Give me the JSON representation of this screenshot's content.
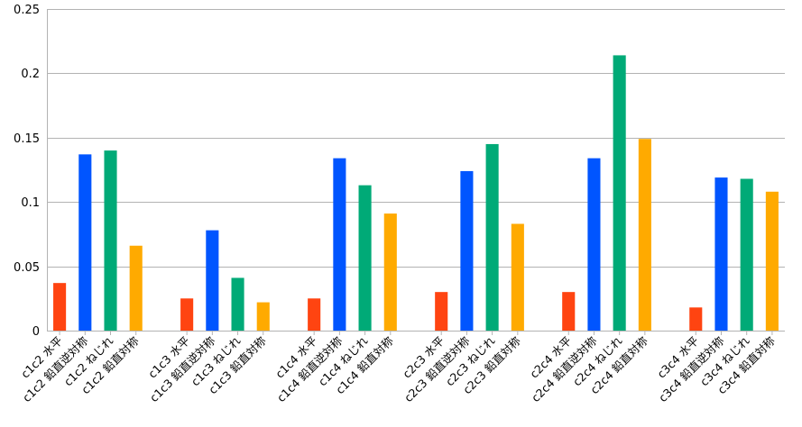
{
  "chart_data": {
    "type": "bar",
    "title": "",
    "xlabel": "",
    "ylabel": "",
    "ylim": [
      0,
      0.25
    ],
    "yticks": [
      "0",
      "0.05",
      "0.1",
      "0.15",
      "0.2",
      "0.25"
    ],
    "ytick_values": [
      0,
      0.05,
      0.1,
      0.15,
      0.2,
      0.25
    ],
    "grid": "horizontal",
    "legend": "none",
    "colors": {
      "水平": "#ff4411",
      "鉛直逆対称": "#0055ff",
      "ねじれ": "#00aa77",
      "鉛直対称": "#ffaa00"
    },
    "groups": [
      {
        "bars": [
          {
            "label": "c1c2 水平",
            "kind": "水平",
            "value": 0.037
          },
          {
            "label": "c1c2 鉛直逆対称",
            "kind": "鉛直逆対称",
            "value": 0.137
          },
          {
            "label": "c1c2 ねじれ",
            "kind": "ねじれ",
            "value": 0.14
          },
          {
            "label": "c1c2 鉛直対称",
            "kind": "鉛直対称",
            "value": 0.066
          }
        ]
      },
      {
        "bars": [
          {
            "label": "c1c3 水平",
            "kind": "水平",
            "value": 0.025
          },
          {
            "label": "c1c3 鉛直逆対称",
            "kind": "鉛直逆対称",
            "value": 0.078
          },
          {
            "label": "c1c3 ねじれ",
            "kind": "ねじれ",
            "value": 0.041
          },
          {
            "label": "c1c3 鉛直対称",
            "kind": "鉛直対称",
            "value": 0.022
          }
        ]
      },
      {
        "bars": [
          {
            "label": "c1c4 水平",
            "kind": "水平",
            "value": 0.025
          },
          {
            "label": "c1c4 鉛直逆対称",
            "kind": "鉛直逆対称",
            "value": 0.134
          },
          {
            "label": "c1c4 ねじれ",
            "kind": "ねじれ",
            "value": 0.113
          },
          {
            "label": "c1c4 鉛直対称",
            "kind": "鉛直対称",
            "value": 0.091
          }
        ]
      },
      {
        "bars": [
          {
            "label": "c2c3 水平",
            "kind": "水平",
            "value": 0.03
          },
          {
            "label": "c2c3 鉛直逆対称",
            "kind": "鉛直逆対称",
            "value": 0.124
          },
          {
            "label": "c2c3 ねじれ",
            "kind": "ねじれ",
            "value": 0.145
          },
          {
            "label": "c2c3 鉛直対称",
            "kind": "鉛直対称",
            "value": 0.083
          }
        ]
      },
      {
        "bars": [
          {
            "label": "c2c4 水平",
            "kind": "水平",
            "value": 0.03
          },
          {
            "label": "c2c4 鉛直逆対称",
            "kind": "鉛直逆対称",
            "value": 0.134
          },
          {
            "label": "c2c4 ねじれ",
            "kind": "ねじれ",
            "value": 0.214
          },
          {
            "label": "c2c4 鉛直対称",
            "kind": "鉛直対称",
            "value": 0.149
          }
        ]
      },
      {
        "bars": [
          {
            "label": "c3c4 水平",
            "kind": "水平",
            "value": 0.018
          },
          {
            "label": "c3c4 鉛直逆対称",
            "kind": "鉛直逆対称",
            "value": 0.119
          },
          {
            "label": "c3c4 ねじれ",
            "kind": "ねじれ",
            "value": 0.118
          },
          {
            "label": "c3c4 鉛直対称",
            "kind": "鉛直対称",
            "value": 0.108
          }
        ]
      }
    ]
  }
}
